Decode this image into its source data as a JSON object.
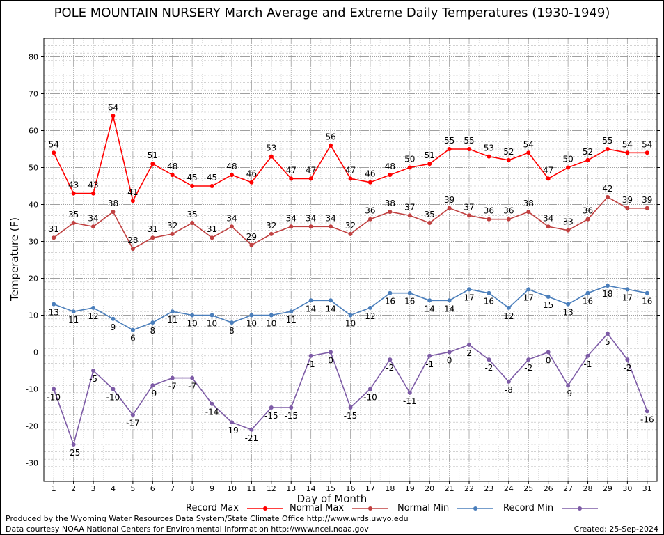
{
  "title": "POLE MOUNTAIN NURSERY March Average and Extreme Daily Temperatures (1930-1949)",
  "footer": {
    "produced_by": "Produced by the Wyoming Water Resources Data System/State Climate Office http://www.wrds.uwyo.edu",
    "data_courtesy": "Data courtesy NOAA National Centers for Environmental Information http://www.ncei.noaa.gov",
    "created": "Created:  25-Sep-2024"
  },
  "chart_data": {
    "type": "line",
    "title": "POLE MOUNTAIN NURSERY March Average and Extreme Daily Temperatures (1930-1949)",
    "xlabel": "Day of Month",
    "ylabel": "Temperature (F)",
    "xlim": [
      0.5,
      31.5
    ],
    "ylim": [
      -35,
      85
    ],
    "yticks": [
      -30,
      -20,
      -10,
      0,
      10,
      20,
      30,
      40,
      50,
      60,
      70,
      80
    ],
    "grid": true,
    "x": [
      1,
      2,
      3,
      4,
      5,
      6,
      7,
      8,
      9,
      10,
      11,
      12,
      13,
      14,
      15,
      16,
      17,
      18,
      19,
      20,
      21,
      22,
      23,
      24,
      25,
      26,
      27,
      28,
      29,
      30,
      31
    ],
    "series": [
      {
        "name": "Record Max",
        "color": "#ff0000",
        "values": [
          54,
          43,
          43,
          64,
          41,
          51,
          48,
          45,
          45,
          48,
          46,
          53,
          47,
          47,
          56,
          47,
          46,
          48,
          50,
          51,
          55,
          55,
          53,
          52,
          54,
          47,
          50,
          52,
          55,
          54,
          54
        ]
      },
      {
        "name": "Normal Max",
        "color": "#c04040",
        "values": [
          31,
          35,
          34,
          38,
          28,
          31,
          32,
          35,
          31,
          34,
          29,
          32,
          34,
          34,
          34,
          32,
          36,
          38,
          37,
          35,
          39,
          37,
          36,
          36,
          38,
          34,
          33,
          36,
          42,
          39,
          39
        ]
      },
      {
        "name": "Normal Min",
        "color": "#4a7ebb",
        "values": [
          13,
          11,
          12,
          9,
          6,
          8,
          11,
          10,
          10,
          8,
          10,
          10,
          11,
          14,
          14,
          10,
          12,
          16,
          16,
          14,
          14,
          17,
          16,
          12,
          17,
          15,
          13,
          16,
          18,
          17,
          16
        ]
      },
      {
        "name": "Record Min",
        "color": "#7d5ba6",
        "values": [
          -10,
          -25,
          -5,
          -10,
          -17,
          -9,
          -7,
          -7,
          -14,
          -19,
          -21,
          -15,
          -15,
          -1,
          0,
          -15,
          -10,
          -2,
          -11,
          -1,
          0,
          2,
          -2,
          -8,
          -2,
          0,
          -9,
          -1,
          5,
          -2,
          -16
        ]
      }
    ]
  }
}
